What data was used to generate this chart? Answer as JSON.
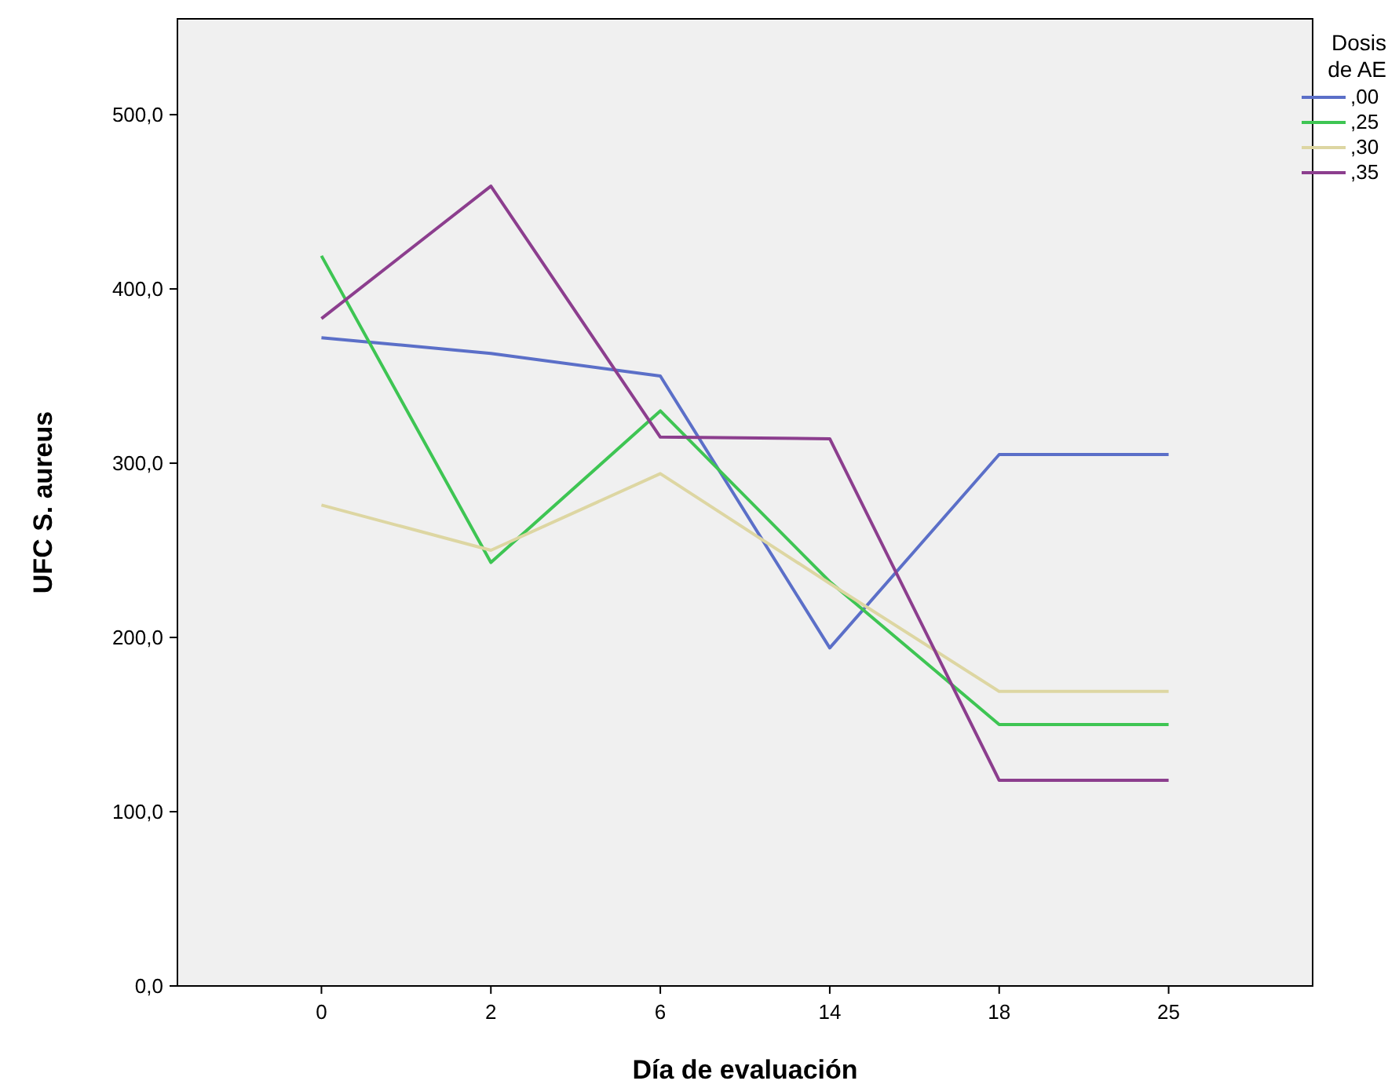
{
  "chart_data": {
    "type": "line",
    "xlabel": "Día de evaluación",
    "ylabel": "UFC S. aureus",
    "legend_title": "Dosis de AE",
    "categories": [
      "0",
      "2",
      "6",
      "14",
      "18",
      "25"
    ],
    "series": [
      {
        "name": ",00",
        "color": "#5b6fc8",
        "values": [
          372,
          363,
          350,
          194,
          305,
          305
        ]
      },
      {
        "name": ",25",
        "color": "#3ec553",
        "values": [
          419,
          243,
          330,
          232,
          150,
          150
        ]
      },
      {
        "name": ",30",
        "color": "#ddd6a2",
        "values": [
          276,
          250,
          294,
          231,
          169,
          169
        ]
      },
      {
        "name": ",35",
        "color": "#8c3e8e",
        "values": [
          383,
          459,
          315,
          314,
          118,
          118
        ]
      }
    ],
    "ylim": [
      0,
      555
    ],
    "yticks": [
      {
        "value": 0,
        "label": "0,0"
      },
      {
        "value": 100,
        "label": "100,0"
      },
      {
        "value": 200,
        "label": "200,0"
      },
      {
        "value": 300,
        "label": "300,0"
      },
      {
        "value": 400,
        "label": "400,0"
      },
      {
        "value": 500,
        "label": "500,0"
      }
    ],
    "grid": false,
    "legend": "top right",
    "marker": "none",
    "line_style": "solid"
  }
}
